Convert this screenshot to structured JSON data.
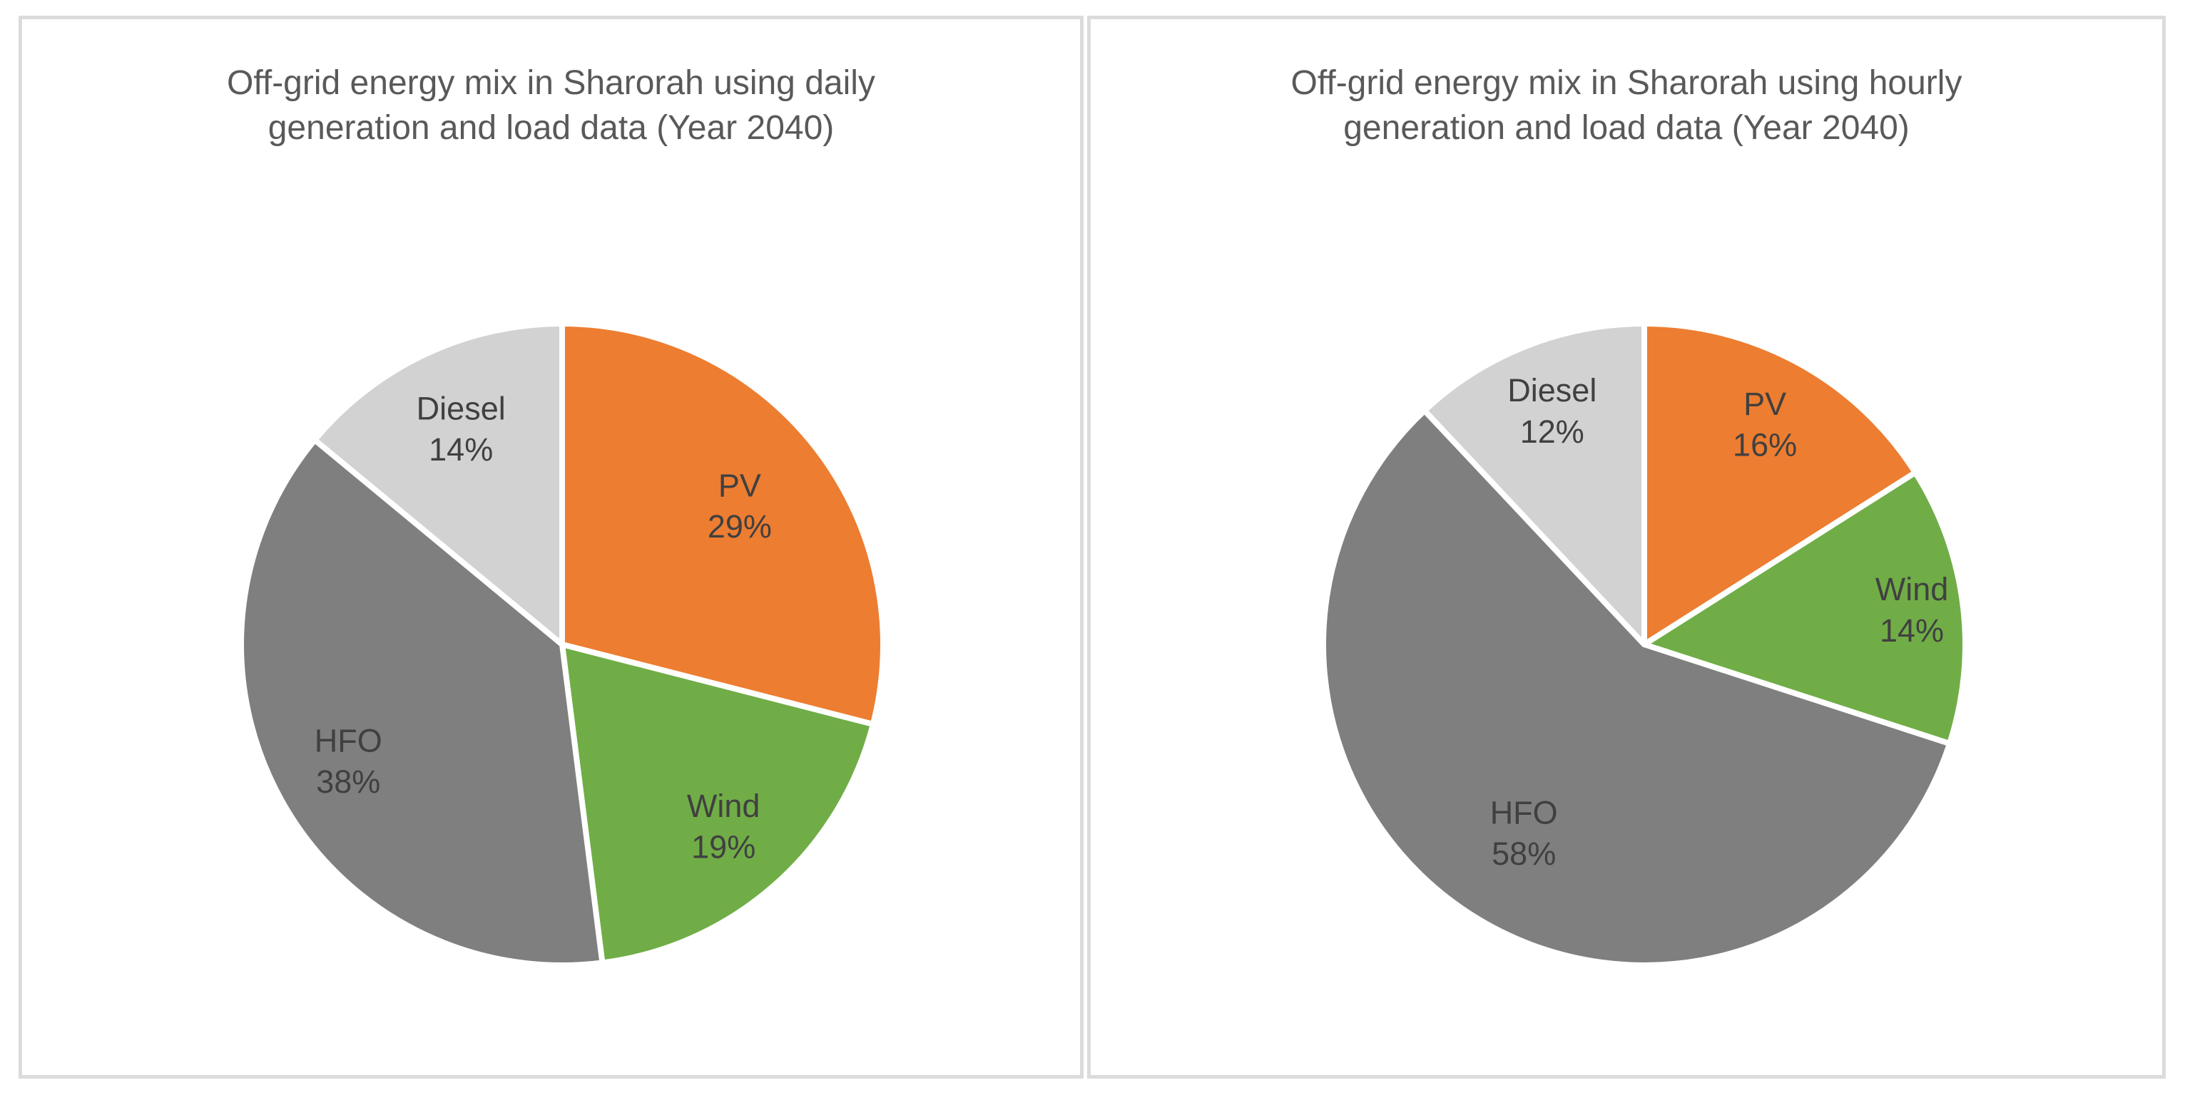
{
  "page": {
    "background_color": "#FFFFFF",
    "panel_border_color": "#DBDBDB",
    "title_color": "#595959"
  },
  "chart_data": [
    {
      "type": "pie",
      "title": "Off-grid energy mix in Sharorah using daily generation and load data (Year 2040)",
      "title_lines": [
        "Off-grid energy mix in Sharorah using daily",
        "generation and load data (Year 2040)"
      ],
      "start_angle": "12 o'clock",
      "direction": "clockwise",
      "legend": "none",
      "label_style": "inside, category name + percent",
      "label_color": "#404040",
      "separator_color": "#FFFFFF",
      "slices": [
        {
          "label": "PV",
          "value_pct": 29,
          "color": "#ED7D31",
          "label_r": 0.7
        },
        {
          "label": "Wind",
          "value_pct": 19,
          "color": "#70AD47",
          "label_r": 0.76
        },
        {
          "label": "HFO",
          "value_pct": 38,
          "color": "#7F7F7F",
          "label_r": 0.76
        },
        {
          "label": "Diesel",
          "value_pct": 14,
          "color": "#D2D2D2",
          "label_r": 0.74
        }
      ]
    },
    {
      "type": "pie",
      "title": "Off-grid energy mix in Sharorah using hourly generation and load data (Year 2040)",
      "title_lines": [
        "Off-grid energy mix in Sharorah using hourly",
        "generation and load data (Year 2040)"
      ],
      "start_angle": "12 o'clock",
      "direction": "clockwise",
      "legend": "none",
      "label_style": "inside, category name + percent",
      "label_color": "#404040",
      "separator_color": "#FFFFFF",
      "slices": [
        {
          "label": "PV",
          "value_pct": 16,
          "color": "#ED7D31",
          "label_r": 0.78
        },
        {
          "label": "Wind",
          "value_pct": 14,
          "color": "#70AD47",
          "label_r": 0.84
        },
        {
          "label": "HFO",
          "value_pct": 58,
          "color": "#7F7F7F",
          "label_r": 0.7
        },
        {
          "label": "Diesel",
          "value_pct": 12,
          "color": "#D2D2D2",
          "label_r": 0.78
        }
      ]
    }
  ]
}
